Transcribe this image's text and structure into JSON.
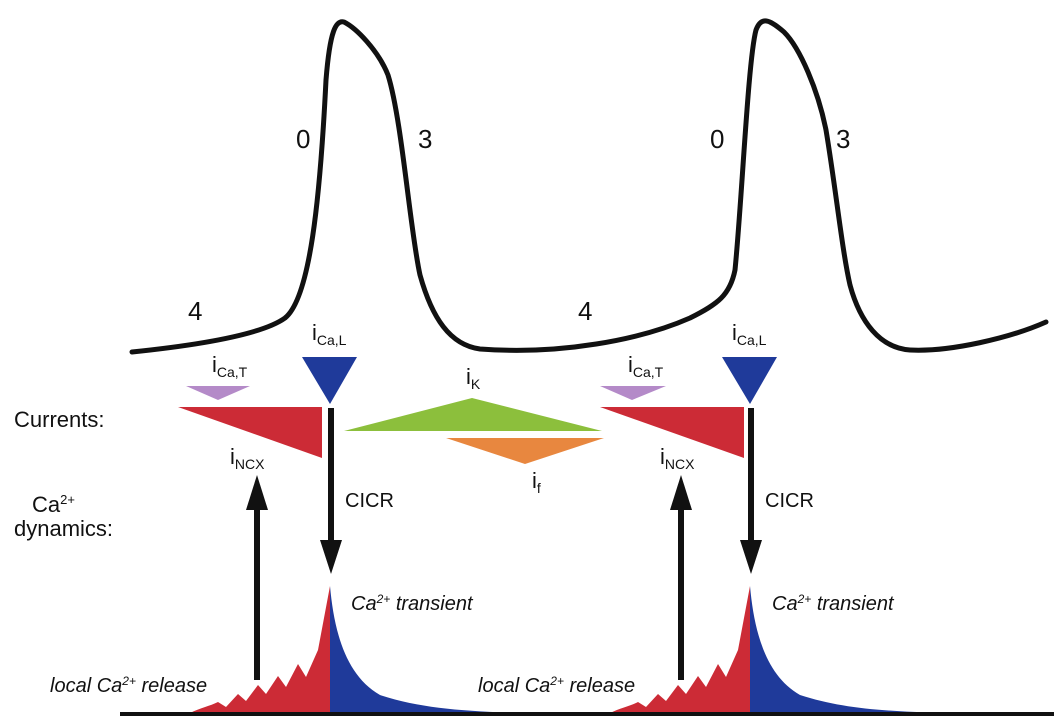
{
  "labels": {
    "phase_0": "0",
    "phase_3": "3",
    "phase_4": "4",
    "currents": "Currents:",
    "ca_dynamics_prefix": "Ca",
    "ca_dynamics_sup": "2+",
    "ca_dynamics_suffix": "dynamics:",
    "i_base": "i",
    "ical_sub": "Ca,L",
    "icat_sub": "Ca,T",
    "incx_sub": "NCX",
    "ik_sub": "K",
    "if_sub": "f",
    "cicr": "CICR",
    "transient_prefix": "Ca",
    "transient_sup": "2+",
    "transient_suffix": " transient",
    "release_prefix": "local Ca",
    "release_sup": "2+",
    "release_suffix": " release"
  },
  "colors": {
    "line": "#111111",
    "ical": "#1f3a9a",
    "icat": "#b48ac8",
    "incx": "#cc2b36",
    "ik": "#8cbf3c",
    "if": "#e8873f",
    "transient": "#1f3a9a",
    "release": "#cc2b36"
  }
}
